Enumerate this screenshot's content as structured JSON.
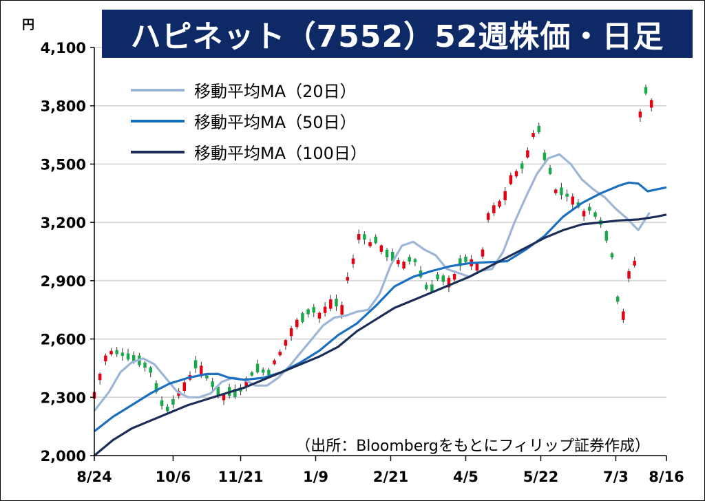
{
  "title": "ハピネット（7552）52週株価・日足",
  "unit": "円",
  "source": "（出所：Bloombergをもとにフィリップ証券作成）",
  "colors": {
    "title_bg": "#0d2a66",
    "up": "#e60012",
    "down": "#19a84a",
    "ma20": "#9db6d5",
    "ma50": "#1a6fbf",
    "ma100": "#1b2e57",
    "grid": "#d0d0d0"
  },
  "chart_data": {
    "type": "candlestick",
    "title": "ハピネット（7552）52週株価・日足",
    "ylabel": "円",
    "ylim": [
      2000,
      4100
    ],
    "yticks": [
      "2,000",
      "2,300",
      "2,600",
      "2,900",
      "3,200",
      "3,500",
      "3,800",
      "4,100"
    ],
    "ytick_values": [
      2000,
      2300,
      2600,
      2900,
      3200,
      3500,
      3800,
      4100
    ],
    "xticks": [
      "8/24",
      "10/6",
      "11/21",
      "1/9",
      "2/21",
      "4/5",
      "5/22",
      "7/3",
      "8/16"
    ],
    "grid": "horizontal",
    "legend_position": "top-left",
    "series": [
      {
        "name": "移動平均MA（20日）",
        "color": "#9db6d5",
        "values": [
          [
            0,
            2230
          ],
          [
            8,
            2330
          ],
          [
            14,
            2430
          ],
          [
            20,
            2480
          ],
          [
            26,
            2500
          ],
          [
            32,
            2470
          ],
          [
            38,
            2400
          ],
          [
            44,
            2330
          ],
          [
            50,
            2300
          ],
          [
            56,
            2300
          ],
          [
            62,
            2320
          ],
          [
            68,
            2380
          ],
          [
            74,
            2400
          ],
          [
            80,
            2390
          ],
          [
            86,
            2360
          ],
          [
            92,
            2360
          ],
          [
            98,
            2400
          ],
          [
            104,
            2460
          ],
          [
            110,
            2530
          ],
          [
            116,
            2600
          ],
          [
            122,
            2670
          ],
          [
            128,
            2710
          ],
          [
            134,
            2720
          ],
          [
            140,
            2740
          ],
          [
            146,
            2750
          ],
          [
            152,
            2830
          ],
          [
            158,
            2980
          ],
          [
            164,
            3080
          ],
          [
            170,
            3100
          ],
          [
            176,
            3060
          ],
          [
            182,
            3030
          ],
          [
            188,
            2960
          ],
          [
            194,
            2940
          ],
          [
            200,
            2920
          ],
          [
            206,
            2950
          ],
          [
            212,
            2960
          ],
          [
            218,
            3050
          ],
          [
            224,
            3200
          ],
          [
            230,
            3330
          ],
          [
            236,
            3450
          ],
          [
            242,
            3530
          ],
          [
            248,
            3550
          ],
          [
            254,
            3500
          ],
          [
            260,
            3420
          ],
          [
            266,
            3370
          ],
          [
            272,
            3330
          ],
          [
            278,
            3270
          ],
          [
            284,
            3220
          ],
          [
            290,
            3160
          ],
          [
            296,
            3250
          ]
        ]
      },
      {
        "name": "移動平均MA（50日）",
        "color": "#1a6fbf",
        "values": [
          [
            0,
            2125
          ],
          [
            10,
            2200
          ],
          [
            20,
            2260
          ],
          [
            30,
            2320
          ],
          [
            40,
            2370
          ],
          [
            50,
            2400
          ],
          [
            60,
            2420
          ],
          [
            66,
            2420
          ],
          [
            72,
            2400
          ],
          [
            80,
            2390
          ],
          [
            90,
            2400
          ],
          [
            100,
            2430
          ],
          [
            110,
            2480
          ],
          [
            120,
            2540
          ],
          [
            130,
            2620
          ],
          [
            140,
            2680
          ],
          [
            150,
            2770
          ],
          [
            160,
            2870
          ],
          [
            170,
            2920
          ],
          [
            180,
            2950
          ],
          [
            190,
            2975
          ],
          [
            200,
            2990
          ],
          [
            210,
            2995
          ],
          [
            220,
            3000
          ],
          [
            230,
            3060
          ],
          [
            240,
            3130
          ],
          [
            250,
            3230
          ],
          [
            260,
            3300
          ],
          [
            270,
            3350
          ],
          [
            280,
            3390
          ],
          [
            285,
            3405
          ],
          [
            290,
            3400
          ],
          [
            295,
            3360
          ],
          [
            300,
            3370
          ],
          [
            305,
            3380
          ]
        ]
      },
      {
        "name": "移動平均MA（100日）",
        "color": "#1b2e57",
        "values": [
          [
            0,
            2000
          ],
          [
            10,
            2080
          ],
          [
            20,
            2140
          ],
          [
            30,
            2180
          ],
          [
            40,
            2220
          ],
          [
            50,
            2260
          ],
          [
            60,
            2290
          ],
          [
            70,
            2320
          ],
          [
            80,
            2350
          ],
          [
            90,
            2390
          ],
          [
            100,
            2430
          ],
          [
            110,
            2470
          ],
          [
            120,
            2510
          ],
          [
            130,
            2560
          ],
          [
            140,
            2640
          ],
          [
            150,
            2700
          ],
          [
            160,
            2760
          ],
          [
            170,
            2800
          ],
          [
            180,
            2840
          ],
          [
            190,
            2880
          ],
          [
            200,
            2920
          ],
          [
            210,
            2970
          ],
          [
            220,
            3020
          ],
          [
            230,
            3070
          ],
          [
            240,
            3120
          ],
          [
            250,
            3160
          ],
          [
            260,
            3190
          ],
          [
            270,
            3200
          ],
          [
            280,
            3210
          ],
          [
            290,
            3215
          ],
          [
            300,
            3230
          ],
          [
            305,
            3240
          ]
        ]
      }
    ]
  }
}
